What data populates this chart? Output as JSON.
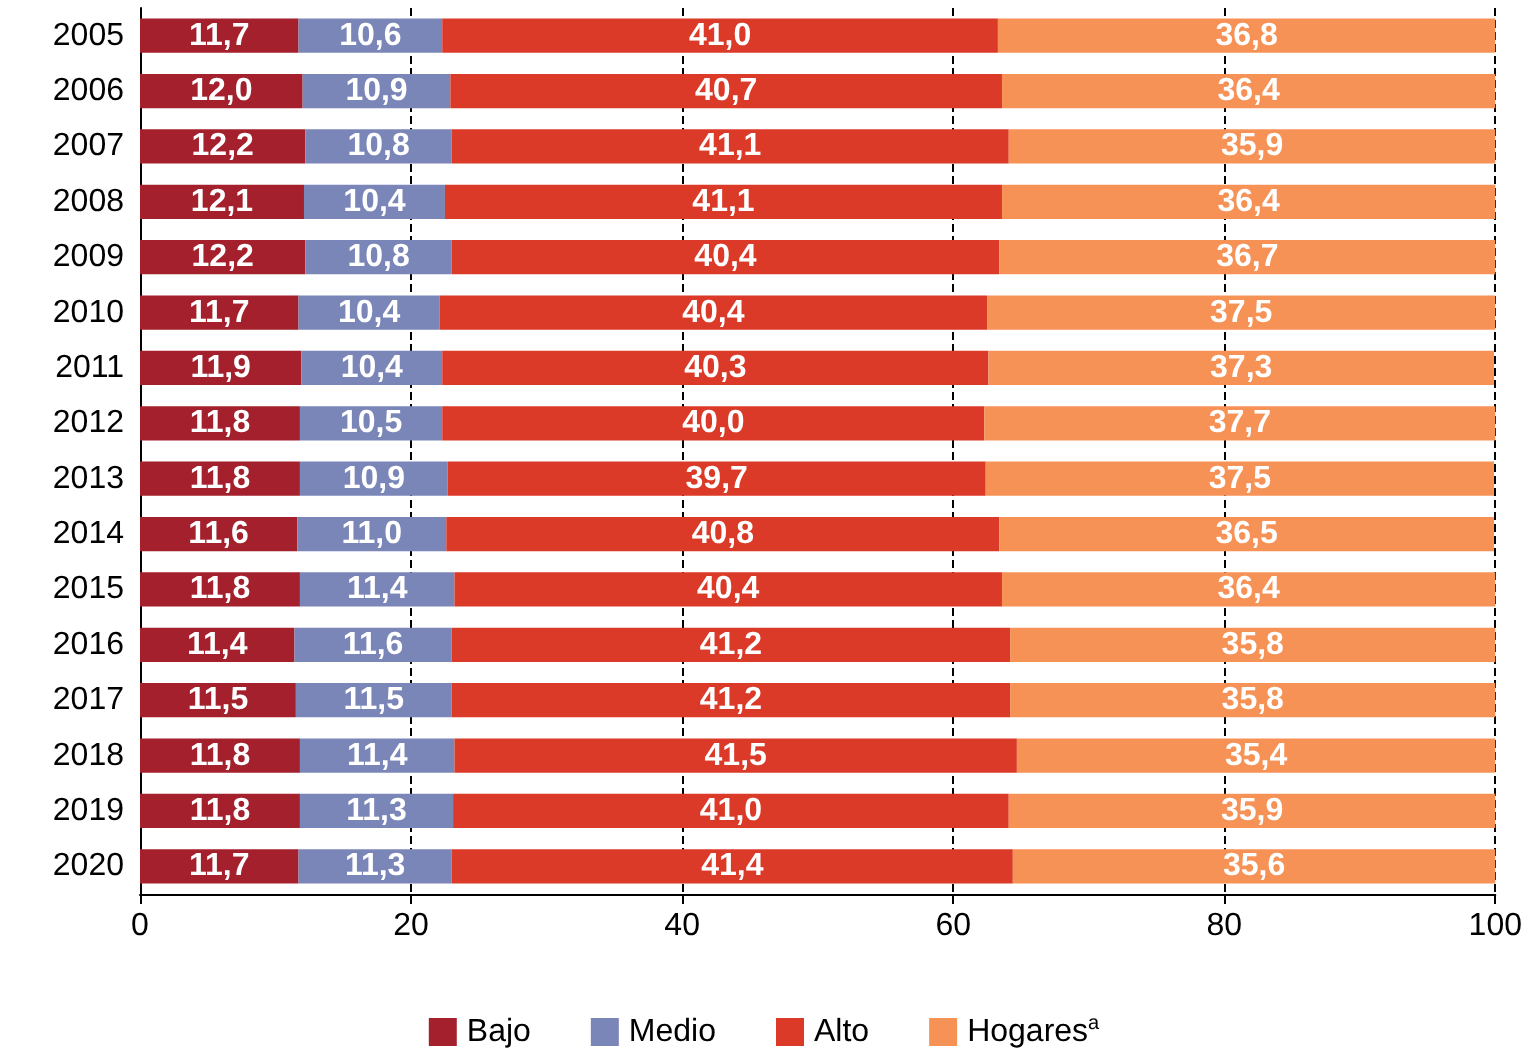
{
  "chart_data": {
    "type": "bar",
    "orientation": "horizontal",
    "stacked": true,
    "categories": [
      "2005",
      "2006",
      "2007",
      "2008",
      "2009",
      "2010",
      "2011",
      "2012",
      "2013",
      "2014",
      "2015",
      "2016",
      "2017",
      "2018",
      "2019",
      "2020"
    ],
    "series": [
      {
        "name": "Bajo",
        "color": "#a3202c",
        "values": [
          11.7,
          12.0,
          12.2,
          12.1,
          12.2,
          11.7,
          11.9,
          11.8,
          11.8,
          11.6,
          11.8,
          11.4,
          11.5,
          11.8,
          11.8,
          11.7
        ],
        "value_labels": [
          "11,7",
          "12,0",
          "12,2",
          "12,1",
          "12,2",
          "11,7",
          "11,9",
          "11,8",
          "11,8",
          "11,6",
          "11,8",
          "11,4",
          "11,5",
          "11,8",
          "11,8",
          "11,7"
        ]
      },
      {
        "name": "Medio",
        "color": "#7b86b8",
        "values": [
          10.6,
          10.9,
          10.8,
          10.4,
          10.8,
          10.4,
          10.4,
          10.5,
          10.9,
          11.0,
          11.4,
          11.6,
          11.5,
          11.4,
          11.3,
          11.3
        ],
        "value_labels": [
          "10,6",
          "10,9",
          "10,8",
          "10,4",
          "10,8",
          "10,4",
          "10,4",
          "10,5",
          "10,9",
          "11,0",
          "11,4",
          "11,6",
          "11,5",
          "11,4",
          "11,3",
          "11,3"
        ]
      },
      {
        "name": "Alto",
        "color": "#db3a28",
        "values": [
          41.0,
          40.7,
          41.1,
          41.1,
          40.4,
          40.4,
          40.3,
          40.0,
          39.7,
          40.8,
          40.4,
          41.2,
          41.2,
          41.5,
          41.0,
          41.4
        ],
        "value_labels": [
          "41,0",
          "40,7",
          "41,1",
          "41,1",
          "40,4",
          "40,4",
          "40,3",
          "40,0",
          "39,7",
          "40,8",
          "40,4",
          "41,2",
          "41,2",
          "41,5",
          "41,0",
          "41,4"
        ]
      },
      {
        "name": "Hogares$^{a}$",
        "color": "#f79256",
        "values": [
          36.8,
          36.4,
          35.9,
          36.4,
          36.7,
          37.5,
          37.3,
          37.7,
          37.5,
          36.5,
          36.4,
          35.8,
          35.8,
          35.4,
          35.9,
          35.6
        ],
        "value_labels": [
          "36,8",
          "36,4",
          "35,9",
          "36,4",
          "36,7",
          "37,5",
          "37,3",
          "37,7",
          "37,5",
          "36,5",
          "36,4",
          "35,8",
          "35,8",
          "35,4",
          "35,9",
          "35,6"
        ]
      }
    ],
    "xlim": [
      0,
      100
    ],
    "xticks": [
      0,
      20,
      40,
      60,
      80,
      100
    ],
    "grid": "x",
    "legend": "bottom"
  }
}
